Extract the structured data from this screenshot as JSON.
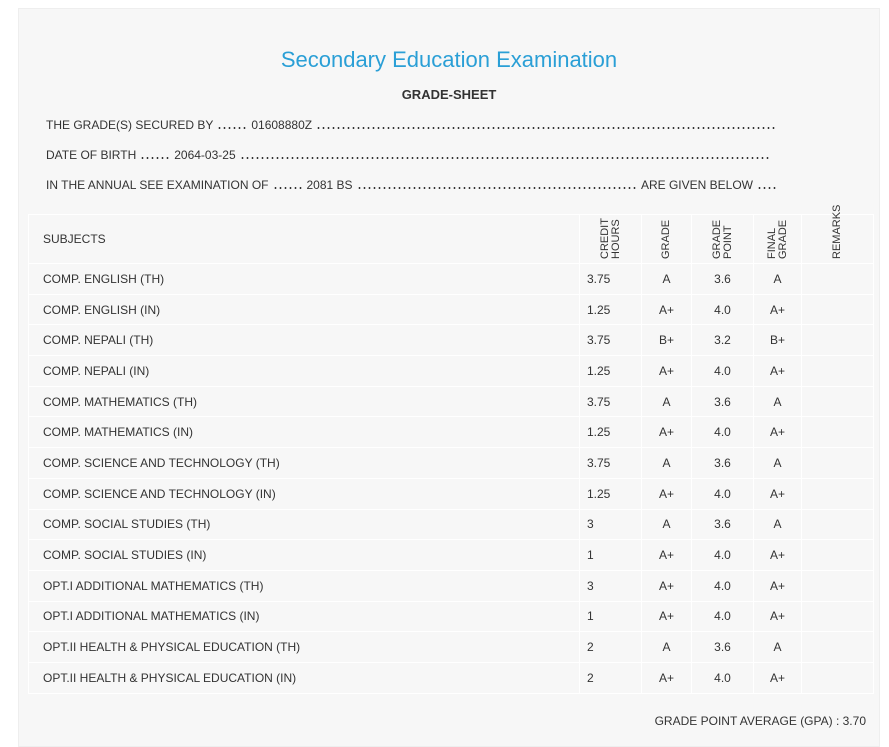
{
  "header": {
    "title": "Secondary Education Examination",
    "subtitle": "GRADE-SHEET"
  },
  "info": [
    {
      "label": "THE GRADE(S) SECURED BY",
      "value": "01608880Z"
    },
    {
      "label": "DATE OF BIRTH",
      "value": "2064-03-25"
    },
    {
      "label": "IN THE ANNUAL SEE EXAMINATION OF",
      "value": "2081 BS",
      "suffix": "ARE GIVEN BELOW"
    }
  ],
  "table": {
    "columns": [
      "SUBJECTS",
      "CREDIT HOURS",
      "GRADE",
      "GRADE POINT",
      "FINAL GRADE",
      "REMARKS"
    ],
    "rows": [
      [
        "COMP. ENGLISH (TH)",
        "3.75",
        "A",
        "3.6",
        "A"
      ],
      [
        "COMP. ENGLISH (IN)",
        "1.25",
        "A+",
        "4.0",
        "A+"
      ],
      [
        "COMP. NEPALI (TH)",
        "3.75",
        "B+",
        "3.2",
        "B+"
      ],
      [
        "COMP. NEPALI (IN)",
        "1.25",
        "A+",
        "4.0",
        "A+"
      ],
      [
        "COMP. MATHEMATICS (TH)",
        "3.75",
        "A",
        "3.6",
        "A"
      ],
      [
        "COMP. MATHEMATICS (IN)",
        "1.25",
        "A+",
        "4.0",
        "A+"
      ],
      [
        "COMP. SCIENCE AND TECHNOLOGY (TH)",
        "3.75",
        "A",
        "3.6",
        "A"
      ],
      [
        "COMP. SCIENCE AND TECHNOLOGY (IN)",
        "1.25",
        "A+",
        "4.0",
        "A+"
      ],
      [
        "COMP. SOCIAL STUDIES (TH)",
        "3",
        "A",
        "3.6",
        "A"
      ],
      [
        "COMP. SOCIAL STUDIES (IN)",
        "1",
        "A+",
        "4.0",
        "A+"
      ],
      [
        "OPT.I ADDITIONAL MATHEMATICS (TH)",
        "3",
        "A+",
        "4.0",
        "A+"
      ],
      [
        "OPT.I ADDITIONAL MATHEMATICS (IN)",
        "1",
        "A+",
        "4.0",
        "A+"
      ],
      [
        "OPT.II HEALTH & PHYSICAL EDUCATION (TH)",
        "2",
        "A",
        "3.6",
        "A"
      ],
      [
        "OPT.II HEALTH & PHYSICAL EDUCATION (IN)",
        "2",
        "A+",
        "4.0",
        "A+"
      ]
    ]
  },
  "footer": {
    "gpa": "GRADE POINT AVERAGE (GPA) : 3.70"
  }
}
